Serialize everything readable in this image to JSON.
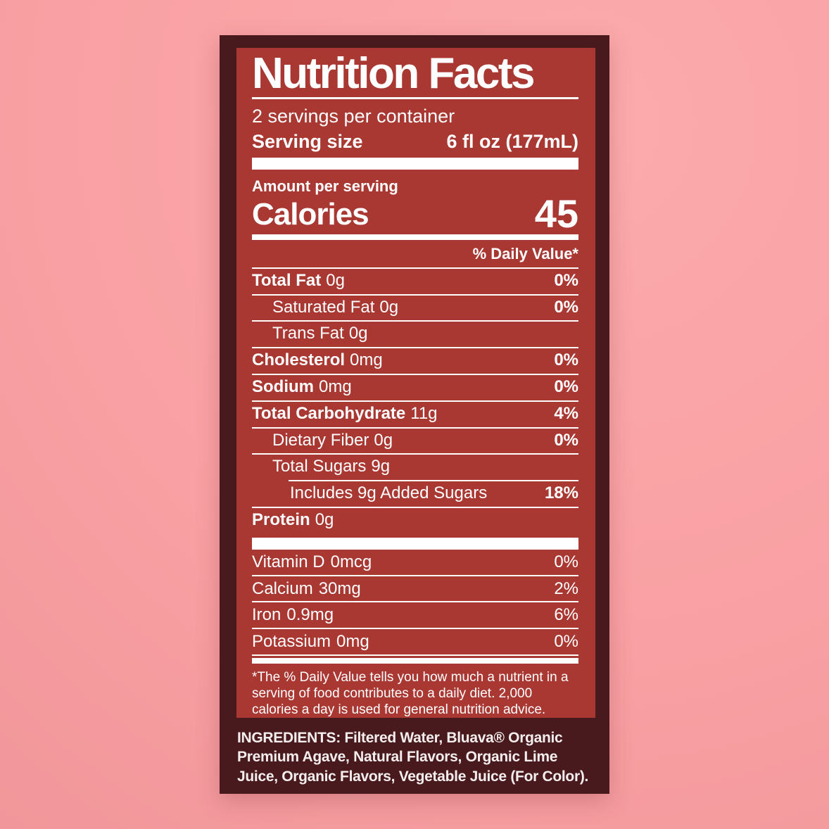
{
  "colors": {
    "background_pink": "#F9A1A4",
    "card_dark": "#481A1D",
    "panel_red": "#A93833",
    "text_white": "#FFFFFF"
  },
  "label": {
    "title": "Nutrition Facts",
    "servings_per_container": "2 servings per container",
    "serving_size_label": "Serving size",
    "serving_size_value": "6 fl oz (177mL)",
    "amount_per_serving": "Amount per serving",
    "calories_label": "Calories",
    "calories_value": "45",
    "daily_value_header": "% Daily Value*",
    "rows": [
      {
        "label": "Total Fat",
        "amount": "0g",
        "dv": "0%"
      },
      {
        "label": "Saturated Fat",
        "amount": "0g",
        "dv": "0%"
      },
      {
        "label": "Trans Fat",
        "amount": "0g",
        "dv": ""
      },
      {
        "label": "Cholesterol",
        "amount": "0mg",
        "dv": "0%"
      },
      {
        "label": "Sodium",
        "amount": "0mg",
        "dv": "0%"
      },
      {
        "label": "Total Carbohydrate",
        "amount": "11g",
        "dv": "4%"
      },
      {
        "label": "Dietary Fiber",
        "amount": "0g",
        "dv": "0%"
      },
      {
        "label": "Total Sugars",
        "amount": "9g",
        "dv": ""
      },
      {
        "label": "Includes 9g Added Sugars",
        "amount": "",
        "dv": "18%"
      },
      {
        "label": "Protein",
        "amount": "0g",
        "dv": ""
      }
    ],
    "micronutrients": [
      {
        "label": "Vitamin D",
        "amount": "0mcg",
        "dv": "0%"
      },
      {
        "label": "Calcium",
        "amount": "30mg",
        "dv": "2%"
      },
      {
        "label": "Iron",
        "amount": "0.9mg",
        "dv": "6%"
      },
      {
        "label": "Potassium",
        "amount": "0mg",
        "dv": "0%"
      }
    ],
    "footnote": "*The % Daily Value tells you how much a nutrient in a serving of food contributes to a daily diet. 2,000 calories a day is used for general nutrition advice.",
    "ingredients": "INGREDIENTS: Filtered Water, Bluava® Organic Premium Agave, Natural Flavors, Organic Lime Juice, Organic Flavors, Vegetable Juice (For Color)."
  }
}
